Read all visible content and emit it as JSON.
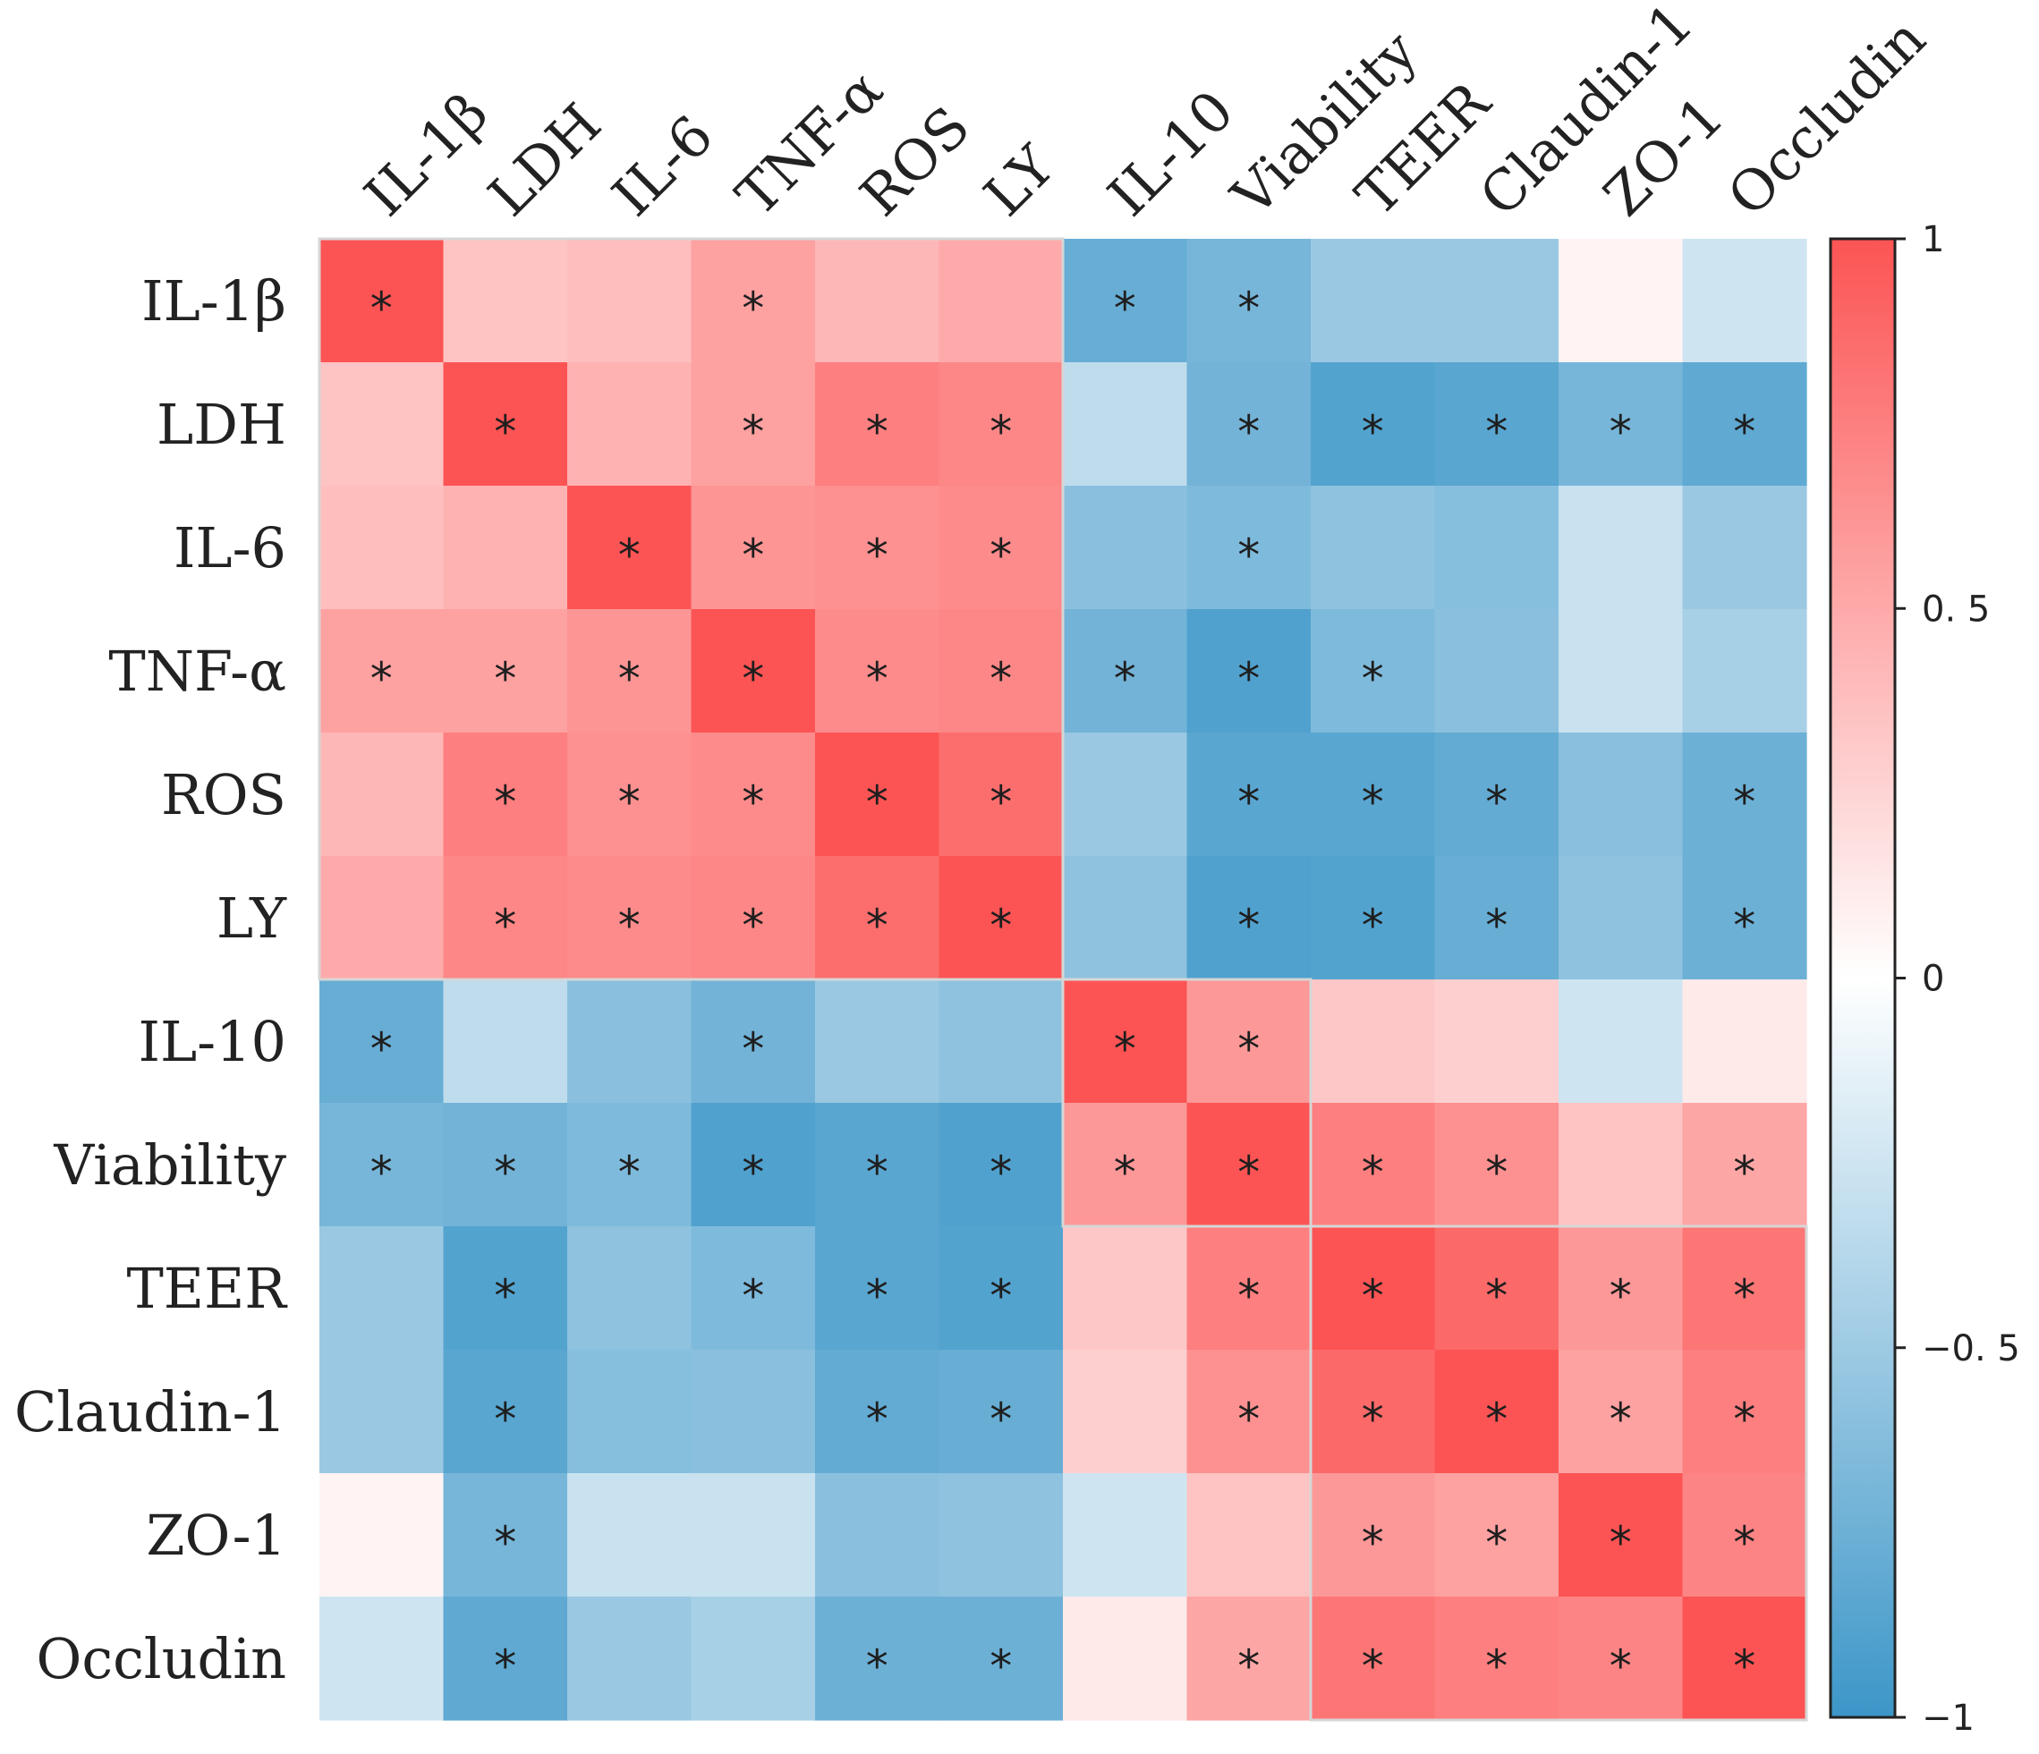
{
  "chart_data": {
    "type": "heatmap",
    "title": "",
    "labels": [
      "IL-1β",
      "LDH",
      "IL-6",
      "TNF-α",
      "ROS",
      "LY",
      "IL-10",
      "Viability",
      "TEER",
      "Claudin-1",
      "ZO-1",
      "Occludin"
    ],
    "values": [
      [
        1.0,
        0.35,
        0.38,
        0.55,
        0.42,
        0.5,
        -0.78,
        -0.7,
        -0.52,
        -0.52,
        0.07,
        -0.25
      ],
      [
        0.35,
        1.0,
        0.45,
        0.55,
        0.75,
        0.7,
        -0.33,
        -0.72,
        -0.88,
        -0.85,
        -0.7,
        -0.82
      ],
      [
        0.38,
        0.45,
        1.0,
        0.62,
        0.65,
        0.68,
        -0.6,
        -0.66,
        -0.58,
        -0.62,
        -0.28,
        -0.52
      ],
      [
        0.55,
        0.55,
        0.62,
        1.0,
        0.68,
        0.7,
        -0.72,
        -0.9,
        -0.66,
        -0.6,
        -0.28,
        -0.45
      ],
      [
        0.42,
        0.75,
        0.65,
        0.68,
        1.0,
        0.85,
        -0.52,
        -0.85,
        -0.85,
        -0.8,
        -0.6,
        -0.75
      ],
      [
        0.5,
        0.7,
        0.68,
        0.7,
        0.85,
        1.0,
        -0.58,
        -0.9,
        -0.88,
        -0.78,
        -0.58,
        -0.75
      ],
      [
        -0.78,
        -0.33,
        -0.6,
        -0.72,
        -0.52,
        -0.58,
        1.0,
        0.6,
        0.33,
        0.28,
        -0.25,
        0.12
      ],
      [
        -0.7,
        -0.72,
        -0.66,
        -0.9,
        -0.85,
        -0.9,
        0.6,
        1.0,
        0.75,
        0.65,
        0.35,
        0.52
      ],
      [
        -0.52,
        -0.88,
        -0.58,
        -0.66,
        -0.85,
        -0.88,
        0.33,
        0.75,
        1.0,
        0.88,
        0.6,
        0.8
      ],
      [
        -0.52,
        -0.85,
        -0.62,
        -0.6,
        -0.8,
        -0.78,
        0.28,
        0.65,
        0.88,
        1.0,
        0.55,
        0.75
      ],
      [
        0.07,
        -0.7,
        -0.28,
        -0.28,
        -0.6,
        -0.58,
        -0.25,
        0.35,
        0.6,
        0.55,
        1.0,
        0.72
      ],
      [
        -0.25,
        -0.82,
        -0.52,
        -0.45,
        -0.75,
        -0.75,
        0.12,
        0.52,
        0.8,
        0.75,
        0.72,
        1.0
      ]
    ],
    "significant": [
      [
        1,
        0,
        0,
        1,
        0,
        0,
        1,
        1,
        0,
        0,
        0,
        0
      ],
      [
        0,
        1,
        0,
        1,
        1,
        1,
        0,
        1,
        1,
        1,
        1,
        1
      ],
      [
        0,
        0,
        1,
        1,
        1,
        1,
        0,
        1,
        0,
        0,
        0,
        0
      ],
      [
        1,
        1,
        1,
        1,
        1,
        1,
        1,
        1,
        1,
        0,
        0,
        0
      ],
      [
        0,
        1,
        1,
        1,
        1,
        1,
        0,
        1,
        1,
        1,
        0,
        1
      ],
      [
        0,
        1,
        1,
        1,
        1,
        1,
        0,
        1,
        1,
        1,
        0,
        1
      ],
      [
        1,
        0,
        0,
        1,
        0,
        0,
        1,
        1,
        0,
        0,
        0,
        0
      ],
      [
        1,
        1,
        1,
        1,
        1,
        1,
        1,
        1,
        1,
        1,
        0,
        1
      ],
      [
        0,
        1,
        0,
        1,
        1,
        1,
        0,
        1,
        1,
        1,
        1,
        1
      ],
      [
        0,
        1,
        0,
        0,
        1,
        1,
        0,
        1,
        1,
        1,
        1,
        1
      ],
      [
        0,
        1,
        0,
        0,
        0,
        0,
        0,
        0,
        1,
        1,
        1,
        1
      ],
      [
        0,
        1,
        0,
        0,
        1,
        1,
        0,
        1,
        1,
        1,
        1,
        1
      ]
    ],
    "significance_marker": "*",
    "group_blocks": [
      [
        0,
        5
      ],
      [
        6,
        7
      ],
      [
        8,
        11
      ]
    ],
    "colorbar": {
      "range": [
        -1,
        1
      ],
      "ticks": [
        1,
        0.5,
        0,
        -0.5,
        -1
      ],
      "tick_labels": [
        "1",
        "0. 5",
        "0",
        "−0. 5",
        "−1"
      ],
      "low_color": "#3c96c8",
      "mid_color": "#ffffff",
      "high_color": "#fc5454"
    }
  }
}
